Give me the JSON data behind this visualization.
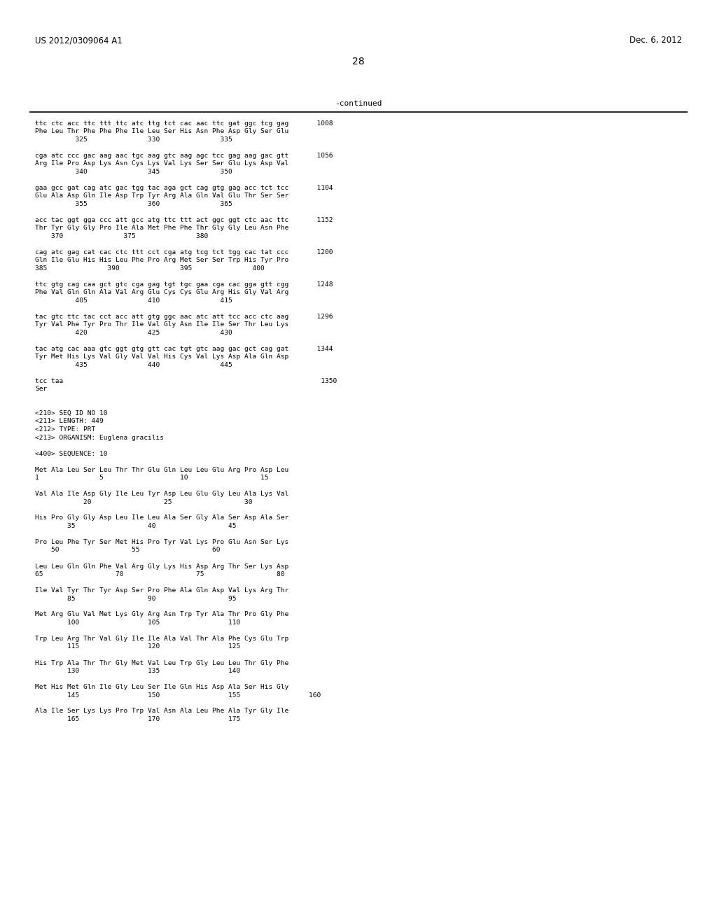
{
  "header_left": "US 2012/0309064 A1",
  "header_right": "Dec. 6, 2012",
  "page_number": "28",
  "continued_label": "-continued",
  "background_color": "#ffffff",
  "text_color": "#000000",
  "content_lines": [
    "ttc ctc acc ttc ttt ttc atc ttg tct cac aac ttc gat ggc tcg gag       1008",
    "Phe Leu Thr Phe Phe Phe Ile Leu Ser His Asn Phe Asp Gly Ser Glu",
    "          325               330               335",
    "",
    "cga atc ccc gac aag aac tgc aag gtc aag agc tcc gag aag gac gtt       1056",
    "Arg Ile Pro Asp Lys Asn Cys Lys Val Lys Ser Ser Glu Lys Asp Val",
    "          340               345               350",
    "",
    "gaa gcc gat cag atc gac tgg tac aga gct cag gtg gag acc tct tcc       1104",
    "Glu Ala Asp Gln Ile Asp Trp Tyr Arg Ala Gln Val Glu Thr Ser Ser",
    "          355               360               365",
    "",
    "acc tac ggt gga ccc att gcc atg ttc ttt act ggc ggt ctc aac ttc       1152",
    "Thr Tyr Gly Gly Pro Ile Ala Met Phe Phe Thr Gly Gly Leu Asn Phe",
    "    370               375               380",
    "",
    "cag atc gag cat cac ctc ttt cct cga atg tcg tct tgg cac tat ccc       1200",
    "Gln Ile Glu His His Leu Phe Pro Arg Met Ser Ser Trp His Tyr Pro",
    "385               390               395               400",
    "",
    "ttc gtg cag caa gct gtc cga gag tgt tgc gaa cga cac gga gtt cgg       1248",
    "Phe Val Gln Gln Ala Val Arg Glu Cys Cys Glu Arg His Gly Val Arg",
    "          405               410               415",
    "",
    "tac gtc ttc tac cct acc att gtg ggc aac atc att tcc acc ctc aag       1296",
    "Tyr Val Phe Tyr Pro Thr Ile Val Gly Asn Ile Ile Ser Thr Leu Lys",
    "          420               425               430",
    "",
    "tac atg cac aaa gtc ggt gtg gtt cac tgt gtc aag gac gct cag gat       1344",
    "Tyr Met His Lys Val Gly Val Val His Cys Val Lys Asp Ala Gln Asp",
    "          435               440               445",
    "",
    "tcc taa                                                                1350",
    "Ser",
    "",
    "",
    "<210> SEQ ID NO 10",
    "<211> LENGTH: 449",
    "<212> TYPE: PRT",
    "<213> ORGANISM: Euglena gracilis",
    "",
    "<400> SEQUENCE: 10",
    "",
    "Met Ala Leu Ser Leu Thr Thr Glu Gln Leu Leu Glu Arg Pro Asp Leu",
    "1               5                   10                  15",
    "",
    "Val Ala Ile Asp Gly Ile Leu Tyr Asp Leu Glu Gly Leu Ala Lys Val",
    "            20                  25                  30",
    "",
    "His Pro Gly Gly Asp Leu Ile Leu Ala Ser Gly Ala Ser Asp Ala Ser",
    "        35                  40                  45",
    "",
    "Pro Leu Phe Tyr Ser Met His Pro Tyr Val Lys Pro Glu Asn Ser Lys",
    "    50                  55                  60",
    "",
    "Leu Leu Gln Gln Phe Val Arg Gly Lys His Asp Arg Thr Ser Lys Asp",
    "65                  70                  75                  80",
    "",
    "Ile Val Tyr Thr Tyr Asp Ser Pro Phe Ala Gln Asp Val Lys Arg Thr",
    "        85                  90                  95",
    "",
    "Met Arg Glu Val Met Lys Gly Arg Asn Trp Tyr Ala Thr Pro Gly Phe",
    "        100                 105                 110",
    "",
    "Trp Leu Arg Thr Val Gly Ile Ile Ala Val Thr Ala Phe Cys Glu Trp",
    "        115                 120                 125",
    "",
    "His Trp Ala Thr Thr Gly Met Val Leu Trp Gly Leu Leu Thr Gly Phe",
    "        130                 135                 140",
    "",
    "Met His Met Gln Ile Gly Leu Ser Ile Gln His Asp Ala Ser His Gly",
    "        145                 150                 155                 160",
    "",
    "Ala Ile Ser Lys Lys Pro Trp Val Asn Ala Leu Phe Ala Tyr Gly Ile",
    "        165                 170                 175"
  ]
}
